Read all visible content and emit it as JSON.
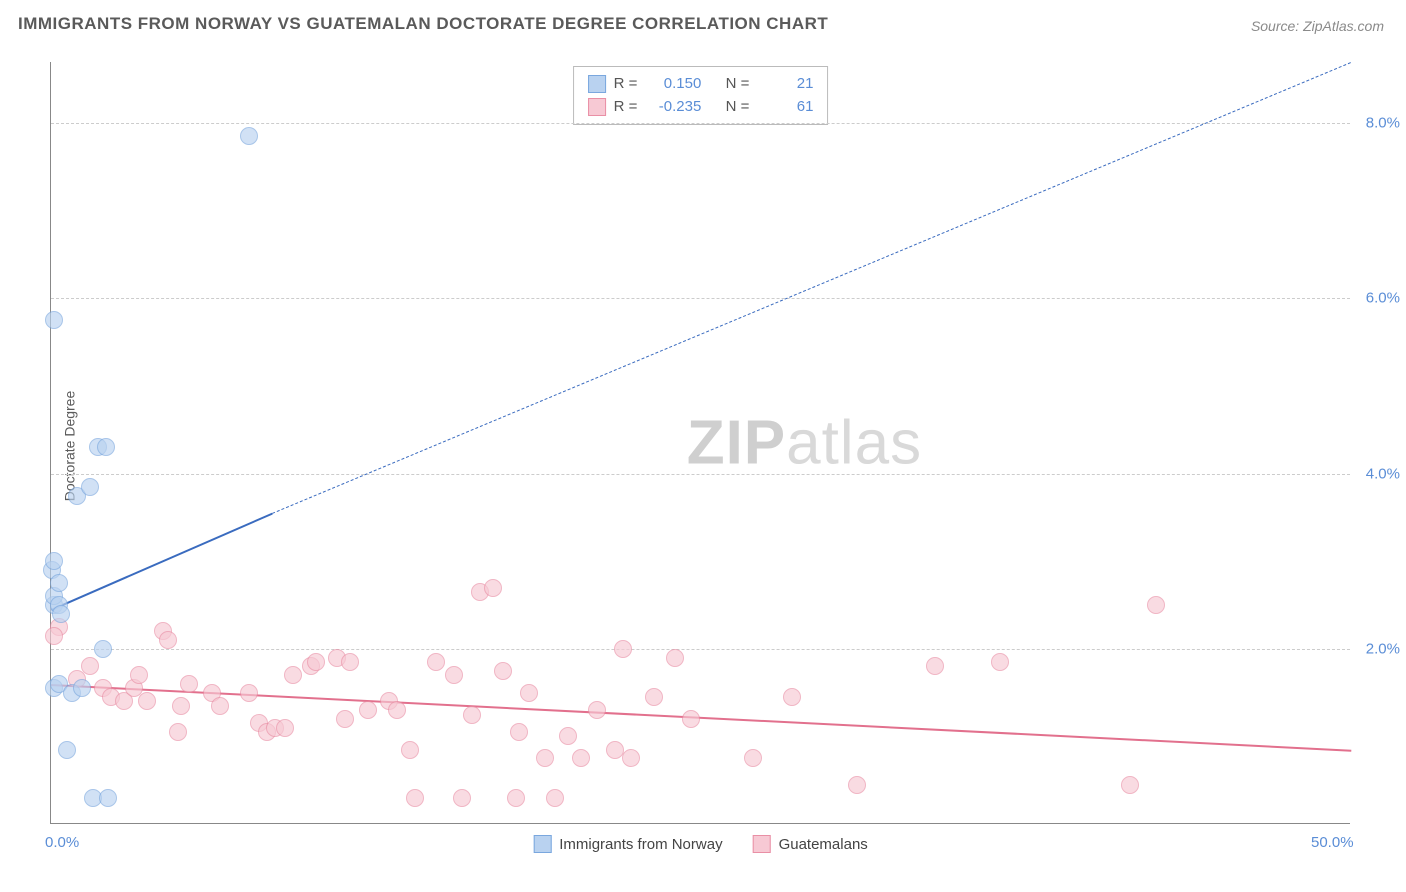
{
  "title": "IMMIGRANTS FROM NORWAY VS GUATEMALAN DOCTORATE DEGREE CORRELATION CHART",
  "source_label": "Source:",
  "source_name": "ZipAtlas.com",
  "y_axis_label": "Doctorate Degree",
  "watermark_zip": "ZIP",
  "watermark_atlas": "atlas",
  "chart": {
    "type": "scatter",
    "xlim": [
      0,
      50
    ],
    "ylim": [
      0,
      8.7
    ],
    "y_ticks": [
      2.0,
      4.0,
      6.0,
      8.0
    ],
    "y_tick_labels": [
      "2.0%",
      "4.0%",
      "6.0%",
      "8.0%"
    ],
    "x_ticks": [
      0,
      50
    ],
    "x_tick_labels": [
      "0.0%",
      "50.0%"
    ],
    "background_color": "#ffffff",
    "grid_color": "#cccccc",
    "axis_color": "#888888",
    "tick_label_color": "#5a8dd6",
    "series": {
      "norway": {
        "label": "Immigrants from Norway",
        "color_fill": "#b9d2f0",
        "color_stroke": "#7aa7de",
        "marker_radius": 9,
        "marker_opacity": 0.65,
        "R": "0.150",
        "N": "21",
        "trend": {
          "start": [
            0,
            2.45
          ],
          "end_solid": [
            8.5,
            3.55
          ],
          "end_dashed": [
            50,
            8.7
          ],
          "color": "#3a6bbf",
          "width_solid": 2.5,
          "width_dashed": 1.5
        },
        "points": [
          [
            0.1,
            2.5
          ],
          [
            0.1,
            2.6
          ],
          [
            0.05,
            2.9
          ],
          [
            0.1,
            3.0
          ],
          [
            0.3,
            2.75
          ],
          [
            0.3,
            2.5
          ],
          [
            0.4,
            2.4
          ],
          [
            0.1,
            1.55
          ],
          [
            0.3,
            1.6
          ],
          [
            0.8,
            1.5
          ],
          [
            1.2,
            1.55
          ],
          [
            0.6,
            0.85
          ],
          [
            1.6,
            0.3
          ],
          [
            2.2,
            0.3
          ],
          [
            2.0,
            2.0
          ],
          [
            1.0,
            3.75
          ],
          [
            1.5,
            3.85
          ],
          [
            1.8,
            4.3
          ],
          [
            2.1,
            4.3
          ],
          [
            0.1,
            5.75
          ],
          [
            7.6,
            7.85
          ]
        ]
      },
      "guatemalans": {
        "label": "Guatemalans",
        "color_fill": "#f7c9d4",
        "color_stroke": "#e98fa5",
        "marker_radius": 9,
        "marker_opacity": 0.65,
        "R": "-0.235",
        "N": "61",
        "trend": {
          "start": [
            0,
            1.6
          ],
          "end_solid": [
            50,
            0.85
          ],
          "color": "#e2708d",
          "width_solid": 2.5
        },
        "points": [
          [
            0.3,
            2.25
          ],
          [
            0.1,
            2.15
          ],
          [
            1.0,
            1.65
          ],
          [
            1.5,
            1.8
          ],
          [
            2.0,
            1.55
          ],
          [
            2.3,
            1.45
          ],
          [
            2.8,
            1.4
          ],
          [
            3.2,
            1.55
          ],
          [
            3.4,
            1.7
          ],
          [
            3.7,
            1.4
          ],
          [
            4.3,
            2.2
          ],
          [
            4.5,
            2.1
          ],
          [
            5.0,
            1.35
          ],
          [
            5.3,
            1.6
          ],
          [
            4.9,
            1.05
          ],
          [
            6.2,
            1.5
          ],
          [
            6.5,
            1.35
          ],
          [
            7.6,
            1.5
          ],
          [
            8.0,
            1.15
          ],
          [
            8.3,
            1.05
          ],
          [
            8.6,
            1.1
          ],
          [
            9.0,
            1.1
          ],
          [
            9.3,
            1.7
          ],
          [
            10.0,
            1.8
          ],
          [
            10.2,
            1.85
          ],
          [
            11.0,
            1.9
          ],
          [
            11.5,
            1.85
          ],
          [
            11.3,
            1.2
          ],
          [
            12.2,
            1.3
          ],
          [
            13.0,
            1.4
          ],
          [
            13.3,
            1.3
          ],
          [
            13.8,
            0.85
          ],
          [
            14.0,
            0.3
          ],
          [
            14.8,
            1.85
          ],
          [
            15.5,
            1.7
          ],
          [
            15.8,
            0.3
          ],
          [
            16.2,
            1.25
          ],
          [
            16.5,
            2.65
          ],
          [
            17.0,
            2.7
          ],
          [
            17.4,
            1.75
          ],
          [
            17.9,
            0.3
          ],
          [
            18.0,
            1.05
          ],
          [
            18.4,
            1.5
          ],
          [
            19.0,
            0.75
          ],
          [
            19.4,
            0.3
          ],
          [
            19.9,
            1.0
          ],
          [
            20.4,
            0.75
          ],
          [
            21.0,
            1.3
          ],
          [
            21.7,
            0.85
          ],
          [
            22.3,
            0.75
          ],
          [
            22.0,
            2.0
          ],
          [
            23.2,
            1.45
          ],
          [
            24.0,
            1.9
          ],
          [
            24.6,
            1.2
          ],
          [
            27.0,
            0.75
          ],
          [
            28.5,
            1.45
          ],
          [
            31.0,
            0.45
          ],
          [
            34.0,
            1.8
          ],
          [
            36.5,
            1.85
          ],
          [
            41.5,
            0.45
          ],
          [
            42.5,
            2.5
          ]
        ]
      }
    }
  },
  "legend_top": {
    "R_label": "R =",
    "N_label": "N ="
  }
}
